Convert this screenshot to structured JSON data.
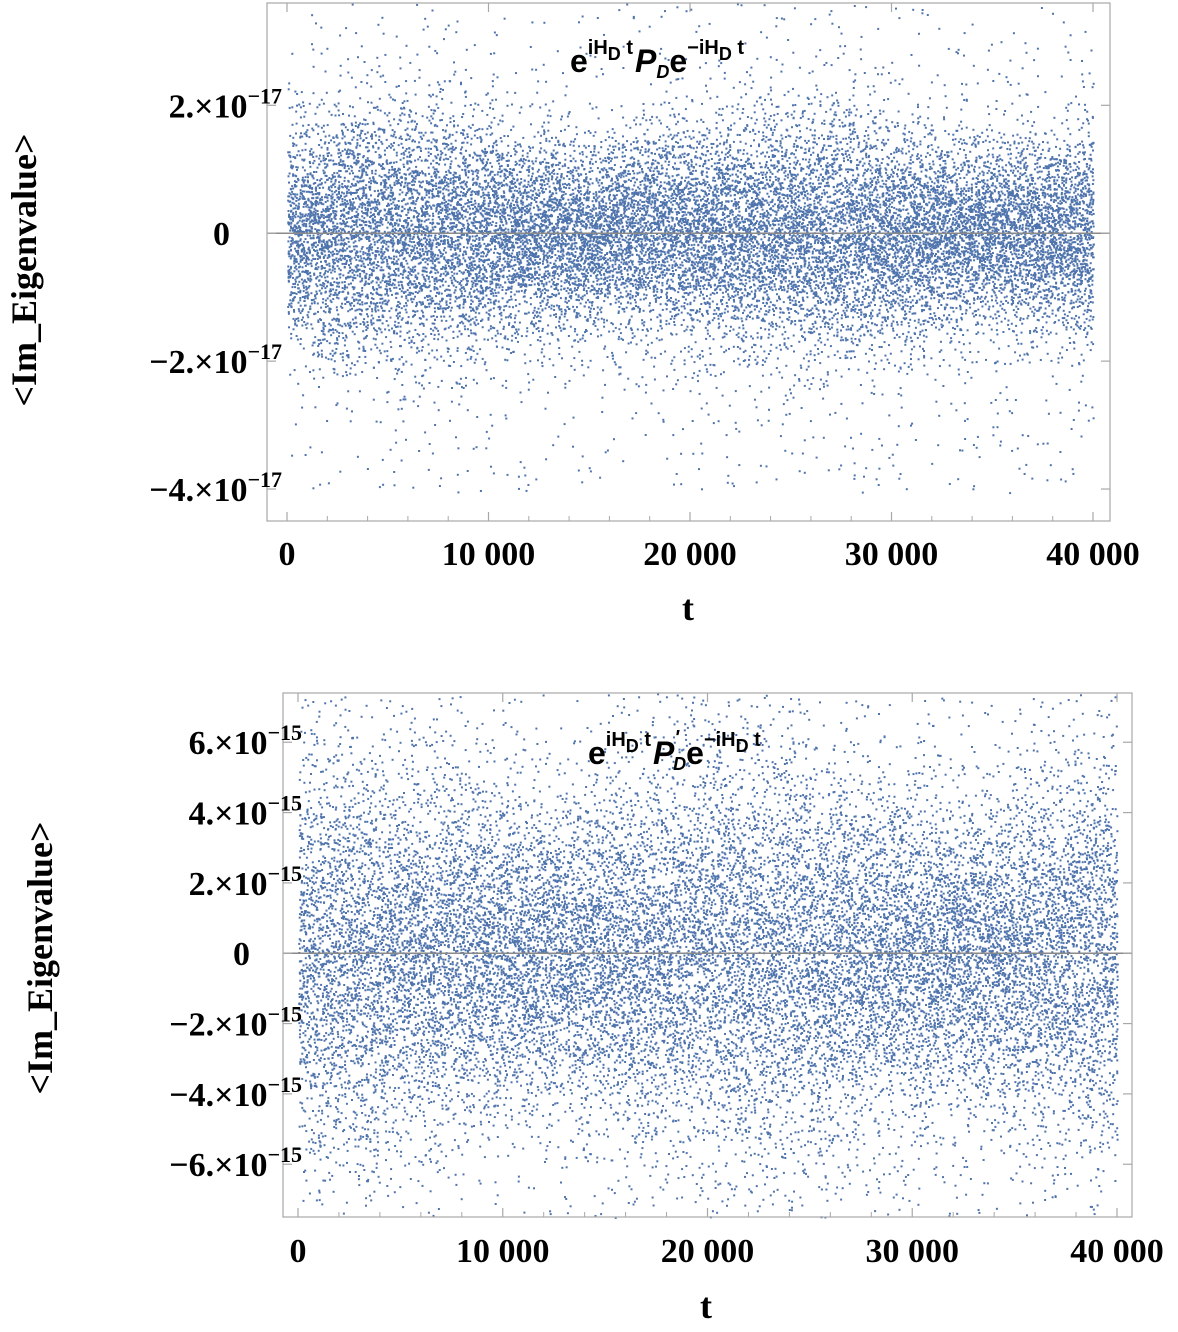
{
  "colors": {
    "points": "#4f74ad",
    "frame": "#a8a8a8",
    "zero_line": "#8a8a8a",
    "background": "#ffffff"
  },
  "chart_data": [
    {
      "type": "scatter",
      "xlabel": "t",
      "ylabel": "<Im_Eigenvalue>",
      "annotation": {
        "base1": "e",
        "sup1": "iH",
        "sup1_sub": "D",
        "sup1_t": " t",
        "op": "P",
        "op_sub": "D",
        "op_prime": "",
        "base2": "e",
        "sup2": "−iH",
        "sup2_sub": "D",
        "sup2_t": " t"
      },
      "xlim": [
        0,
        40000
      ],
      "ylim": [
        -4.5e-17,
        3.6e-17
      ],
      "xticks": [
        0,
        10000,
        20000,
        30000,
        40000
      ],
      "xtick_labels": [
        "0",
        "10 000",
        "20 000",
        "30 000",
        "40 000"
      ],
      "yticks": [
        {
          "value": 2e-17,
          "mantissa": "2.×10",
          "exponent": "−17"
        },
        {
          "value": 0,
          "mantissa": "0",
          "exponent": ""
        },
        {
          "value": -2e-17,
          "mantissa": "−2.×10",
          "exponent": "−17"
        },
        {
          "value": -4e-17,
          "mantissa": "−4.×10",
          "exponent": "−17"
        }
      ],
      "series_summary": {
        "n_points": 40000,
        "mean": 0,
        "std": 8.5e-18,
        "core_dense_band": [
          -1.3e-17,
          1.3e-17
        ]
      }
    },
    {
      "type": "scatter",
      "xlabel": "t",
      "ylabel": "<Im_Eigenvalue>",
      "annotation": {
        "base1": "e",
        "sup1": "iH",
        "sup1_sub": "D",
        "sup1_t": " t",
        "op": "P",
        "op_sub": "D",
        "op_prime": "'",
        "base2": "e",
        "sup2": "−iH",
        "sup2_sub": "D",
        "sup2_t": " t"
      },
      "xlim": [
        0,
        40000
      ],
      "ylim": [
        -7.5e-15,
        7.4e-15
      ],
      "xticks": [
        0,
        10000,
        20000,
        30000,
        40000
      ],
      "xtick_labels": [
        "0",
        "10 000",
        "20 000",
        "30 000",
        "40 000"
      ],
      "yticks": [
        {
          "value": 6e-15,
          "mantissa": "6.×10",
          "exponent": "−15"
        },
        {
          "value": 4e-15,
          "mantissa": "4.×10",
          "exponent": "−15"
        },
        {
          "value": 2e-15,
          "mantissa": "2.×10",
          "exponent": "−15"
        },
        {
          "value": 0,
          "mantissa": "0",
          "exponent": ""
        },
        {
          "value": -2e-15,
          "mantissa": "−2.×10",
          "exponent": "−15"
        },
        {
          "value": -4e-15,
          "mantissa": "−4.×10",
          "exponent": "−15"
        },
        {
          "value": -6e-15,
          "mantissa": "−6.×10",
          "exponent": "−15"
        }
      ],
      "series_summary": {
        "n_points": 40000,
        "mean": 0,
        "std": 2.6e-15,
        "core_dense_band": [
          -1.5e-15,
          1.3e-15
        ]
      }
    }
  ]
}
